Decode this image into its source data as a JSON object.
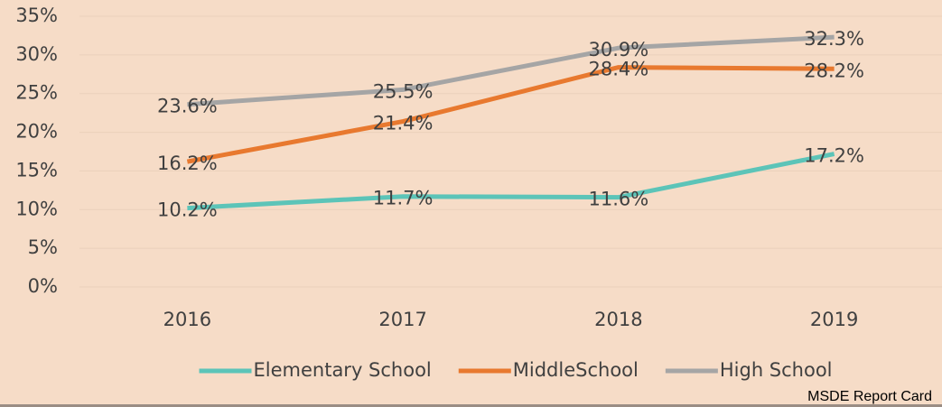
{
  "chart_data": {
    "type": "line",
    "categories": [
      "2016",
      "2017",
      "2018",
      "2019"
    ],
    "series": [
      {
        "name": "Elementary School",
        "color": "#5cc4b8",
        "values": [
          10.2,
          11.7,
          11.6,
          17.2
        ],
        "value_labels": [
          "10.2%",
          "11.7%",
          "11.6%",
          "17.2%"
        ]
      },
      {
        "name": "MiddleSchool",
        "color": "#e8792f",
        "values": [
          16.2,
          21.4,
          28.4,
          28.2
        ],
        "value_labels": [
          "16.2%",
          "21.4%",
          "28.4%",
          "28.2%"
        ]
      },
      {
        "name": "High School",
        "color": "#a5a5a5",
        "values": [
          23.6,
          25.5,
          30.9,
          32.3
        ],
        "value_labels": [
          "23.6%",
          "25.5%",
          "30.9%",
          "32.3%"
        ]
      }
    ],
    "ylim": [
      0,
      35
    ],
    "yticks": [
      {
        "value": 0,
        "label": "0%"
      },
      {
        "value": 5,
        "label": "5%"
      },
      {
        "value": 10,
        "label": "10%"
      },
      {
        "value": 15,
        "label": "15%"
      },
      {
        "value": 20,
        "label": "20%"
      },
      {
        "value": 25,
        "label": "25%"
      },
      {
        "value": 30,
        "label": "30%"
      },
      {
        "value": 35,
        "label": "35%"
      }
    ],
    "grid": true,
    "legend": "bottom",
    "source": "MSDE Report Card"
  }
}
